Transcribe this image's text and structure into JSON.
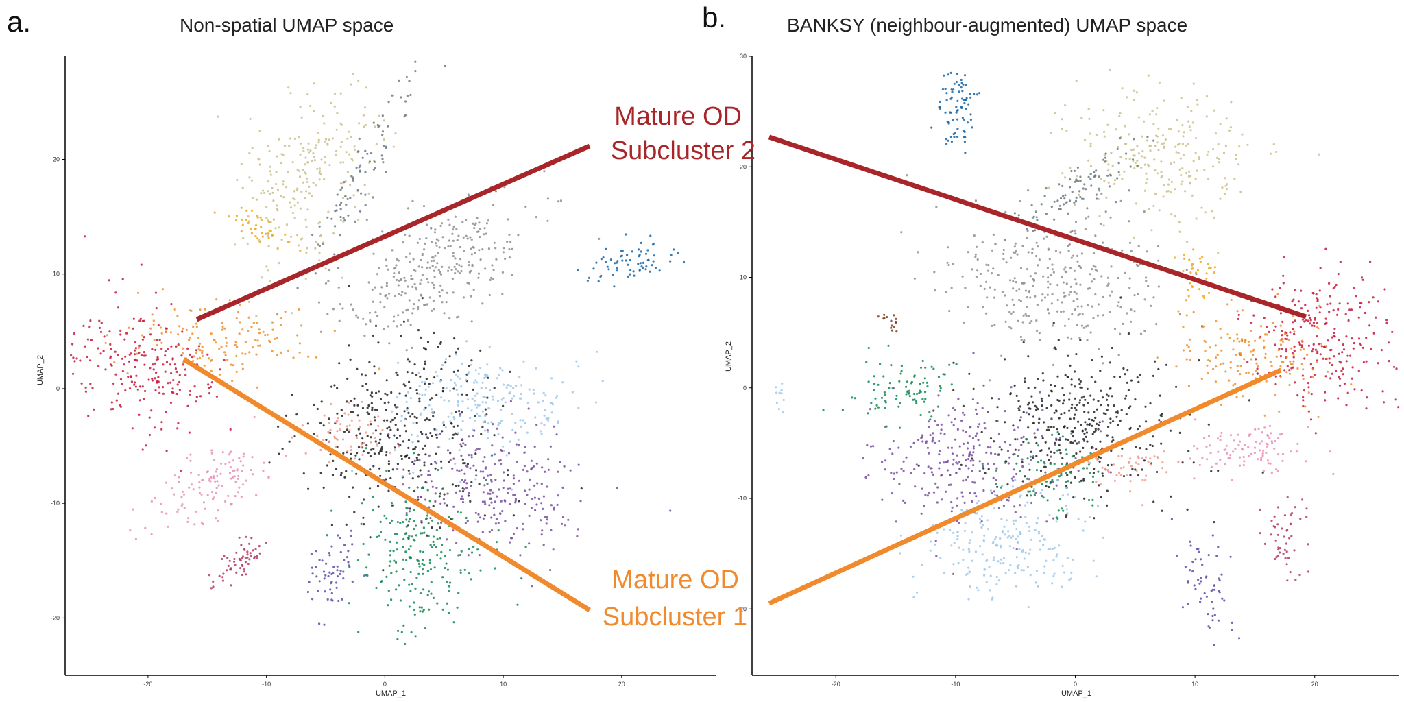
{
  "figure": {
    "callouts": {
      "sub2": {
        "line1": "Mature OD",
        "line2": "Subcluster 2",
        "color": "#a8262a"
      },
      "sub1": {
        "line1": "Mature OD",
        "line2": "Subcluster 1",
        "color": "#f08a2c"
      }
    }
  },
  "chart_data": [
    {
      "type": "scatter",
      "panel_label": "a.",
      "title": "Non-spatial UMAP space",
      "xlabel": "UMAP_1",
      "ylabel": "UMAP_2",
      "xlim": [
        -27,
        28
      ],
      "ylim": [
        -25,
        29
      ],
      "x_ticks": [
        -20,
        -10,
        0,
        10,
        20
      ],
      "y_ticks": [
        -20,
        -10,
        0,
        10,
        20
      ],
      "grid": false,
      "clusters": [
        {
          "color": "#cbbf8a",
          "x": -6.5,
          "y": 18.5,
          "sx": 2.6,
          "sy": 4.2,
          "rot": -25,
          "n": 240
        },
        {
          "color": "#6b7a80",
          "x": -1.5,
          "y": 19.5,
          "sx": 0.8,
          "sy": 5.0,
          "rot": -30,
          "n": 90
        },
        {
          "color": "#f0a817",
          "x": -10.5,
          "y": 14.0,
          "sx": 1.4,
          "sy": 0.6,
          "rot": -30,
          "n": 40
        },
        {
          "color": "#8e8e8e",
          "x": 4.0,
          "y": 10.5,
          "sx": 4.6,
          "sy": 2.3,
          "rot": 30,
          "n": 300
        },
        {
          "color": "#1565a8",
          "x": 21.0,
          "y": 11.0,
          "sx": 2.2,
          "sy": 0.8,
          "rot": 15,
          "n": 70
        },
        {
          "color": "#c8163a",
          "x": -20.5,
          "y": 1.5,
          "sx": 3.4,
          "sy": 2.6,
          "rot": -35,
          "n": 220
        },
        {
          "color": "#f0902a",
          "x": -14.0,
          "y": 4.5,
          "sx": 4.0,
          "sy": 1.6,
          "rot": 0,
          "n": 140
        },
        {
          "color": "#222222",
          "x": 1.5,
          "y": -3.5,
          "sx": 4.2,
          "sy": 3.8,
          "rot": 0,
          "n": 380
        },
        {
          "color": "#9ec8ea",
          "x": 8.5,
          "y": -1.5,
          "sx": 3.8,
          "sy": 2.4,
          "rot": 0,
          "n": 220
        },
        {
          "color": "#7a4ea0",
          "x": 9.0,
          "y": -8.5,
          "sx": 4.0,
          "sy": 2.6,
          "rot": -15,
          "n": 260
        },
        {
          "color": "#0f8a52",
          "x": 3.0,
          "y": -14.0,
          "sx": 2.6,
          "sy": 3.6,
          "rot": 0,
          "n": 220
        },
        {
          "color": "#f29a88",
          "x": -3.5,
          "y": -4.0,
          "sx": 2.0,
          "sy": 1.2,
          "rot": 0,
          "n": 60
        },
        {
          "color": "#e891b8",
          "x": -14.5,
          "y": -8.5,
          "sx": 3.0,
          "sy": 1.4,
          "rot": 30,
          "n": 120
        },
        {
          "color": "#b33a63",
          "x": -12.0,
          "y": -15.0,
          "sx": 1.6,
          "sy": 0.6,
          "rot": 40,
          "n": 60
        },
        {
          "color": "#5a4fa8",
          "x": -4.5,
          "y": -16.0,
          "sx": 1.0,
          "sy": 2.0,
          "rot": -20,
          "n": 60
        }
      ]
    },
    {
      "type": "scatter",
      "panel_label": "b.",
      "title": "BANKSY (neighbour-augmented) UMAP space",
      "xlabel": "UMAP_1",
      "ylabel": "UMAP_2",
      "xlim": [
        -27,
        27
      ],
      "ylim": [
        -26,
        30
      ],
      "x_ticks": [
        -20,
        -10,
        0,
        10,
        20
      ],
      "y_ticks": [
        -20,
        -10,
        0,
        10,
        20,
        30
      ],
      "grid": false,
      "clusters": [
        {
          "color": "#1565a8",
          "x": -9.8,
          "y": 25.0,
          "sx": 0.8,
          "sy": 1.8,
          "rot": 0,
          "n": 80
        },
        {
          "color": "#cbbf8a",
          "x": 7.0,
          "y": 21.0,
          "sx": 4.0,
          "sy": 3.0,
          "rot": -10,
          "n": 240
        },
        {
          "color": "#6b7a80",
          "x": 0.5,
          "y": 18.0,
          "sx": 3.0,
          "sy": 1.0,
          "rot": 35,
          "n": 90
        },
        {
          "color": "#8e8e8e",
          "x": -2.0,
          "y": 9.5,
          "sx": 4.6,
          "sy": 3.4,
          "rot": 0,
          "n": 320
        },
        {
          "color": "#f0a817",
          "x": 10.0,
          "y": 10.0,
          "sx": 0.8,
          "sy": 1.2,
          "rot": 0,
          "n": 40
        },
        {
          "color": "#c8163a",
          "x": 20.5,
          "y": 4.5,
          "sx": 3.8,
          "sy": 3.0,
          "rot": -15,
          "n": 260
        },
        {
          "color": "#f0902a",
          "x": 14.5,
          "y": 3.0,
          "sx": 3.6,
          "sy": 2.2,
          "rot": -10,
          "n": 160
        },
        {
          "color": "#222222",
          "x": 0.5,
          "y": -3.0,
          "sx": 4.2,
          "sy": 3.4,
          "rot": 0,
          "n": 380
        },
        {
          "color": "#7a4ea0",
          "x": -8.5,
          "y": -6.5,
          "sx": 4.0,
          "sy": 3.0,
          "rot": 0,
          "n": 280
        },
        {
          "color": "#0f8a52",
          "x": -14.0,
          "y": 0.0,
          "sx": 2.4,
          "sy": 1.4,
          "rot": 0,
          "n": 90
        },
        {
          "color": "#0f8a52",
          "x": -2.0,
          "y": -8.0,
          "sx": 2.2,
          "sy": 2.0,
          "rot": 0,
          "n": 80
        },
        {
          "color": "#9ec8ea",
          "x": -5.5,
          "y": -14.0,
          "sx": 3.6,
          "sy": 2.6,
          "rot": 0,
          "n": 220
        },
        {
          "color": "#f29a88",
          "x": 4.0,
          "y": -7.0,
          "sx": 1.6,
          "sy": 1.0,
          "rot": 0,
          "n": 50
        },
        {
          "color": "#e891b8",
          "x": 14.5,
          "y": -5.5,
          "sx": 2.2,
          "sy": 1.2,
          "rot": 0,
          "n": 100
        },
        {
          "color": "#b33a63",
          "x": 17.5,
          "y": -13.5,
          "sx": 0.8,
          "sy": 1.8,
          "rot": 0,
          "n": 50
        },
        {
          "color": "#5a4fa8",
          "x": 11.0,
          "y": -17.5,
          "sx": 1.0,
          "sy": 2.4,
          "rot": 20,
          "n": 60
        },
        {
          "color": "#9ec8ea",
          "x": -24.5,
          "y": -0.5,
          "sx": 0.4,
          "sy": 0.6,
          "rot": 0,
          "n": 10
        },
        {
          "color": "#7a3a1e",
          "x": -15.5,
          "y": 6.0,
          "sx": 0.8,
          "sy": 0.4,
          "rot": -40,
          "n": 15
        }
      ]
    }
  ]
}
